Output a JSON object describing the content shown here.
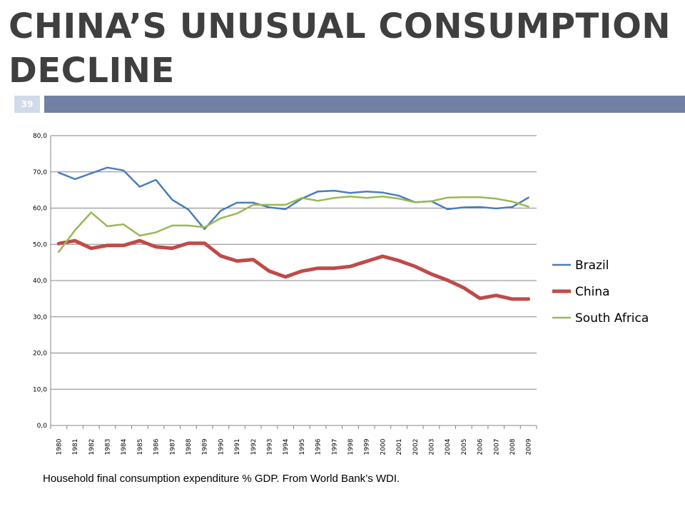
{
  "slide": {
    "title": "CHINA’S UNUSUAL CONSUMPTION DECLINE",
    "page_number": "39",
    "caption": "Household final consumption expenditure % GDP. From World Bank’s WDI.",
    "accent_color": "#7180a4",
    "page_badge_color": "#d1dae8"
  },
  "chart_data": {
    "type": "line",
    "title": "",
    "xlabel": "",
    "ylabel": "",
    "ylim": [
      0,
      80
    ],
    "yticks": [
      "0,0",
      "10,0",
      "20,0",
      "30,0",
      "40,0",
      "50,0",
      "60,0",
      "70,0",
      "80,0"
    ],
    "grid": true,
    "legend_position": "right",
    "x": [
      "1980",
      "1981",
      "1982",
      "1983",
      "1984",
      "1985",
      "1986",
      "1987",
      "1988",
      "1989",
      "1990",
      "1991",
      "1992",
      "1993",
      "1994",
      "1995",
      "1996",
      "1997",
      "1998",
      "1999",
      "2000",
      "2001",
      "2002",
      "2003",
      "2004",
      "2005",
      "2006",
      "2007",
      "2008",
      "2009"
    ],
    "series": [
      {
        "name": "Brazil",
        "color": "#4a7ebb",
        "values": [
          69.8,
          68.0,
          69.6,
          71.2,
          70.4,
          65.9,
          67.8,
          62.3,
          59.6,
          54.2,
          59.3,
          61.5,
          61.5,
          60.2,
          59.7,
          62.6,
          64.6,
          64.8,
          64.2,
          64.6,
          64.3,
          63.4,
          61.6,
          61.9,
          59.7,
          60.2,
          60.3,
          59.9,
          60.3,
          62.9
        ]
      },
      {
        "name": "China",
        "color": "#be4b48",
        "values": [
          50.2,
          51.0,
          48.9,
          49.7,
          49.7,
          51.0,
          49.3,
          48.9,
          50.3,
          50.3,
          46.8,
          45.4,
          45.8,
          42.6,
          41.0,
          42.6,
          43.4,
          43.4,
          43.9,
          45.3,
          46.7,
          45.5,
          43.9,
          41.8,
          40.1,
          38.0,
          35.1,
          35.9,
          34.9,
          34.9
        ]
      },
      {
        "name": "South Africa",
        "color": "#98b954",
        "values": [
          47.9,
          53.9,
          58.8,
          55.0,
          55.5,
          52.4,
          53.3,
          55.2,
          55.2,
          54.7,
          57.2,
          58.5,
          60.9,
          60.9,
          60.9,
          62.8,
          62.0,
          62.8,
          63.2,
          62.8,
          63.2,
          62.6,
          61.6,
          61.9,
          62.9,
          63.0,
          63.0,
          62.6,
          61.8,
          60.4
        ]
      }
    ]
  }
}
